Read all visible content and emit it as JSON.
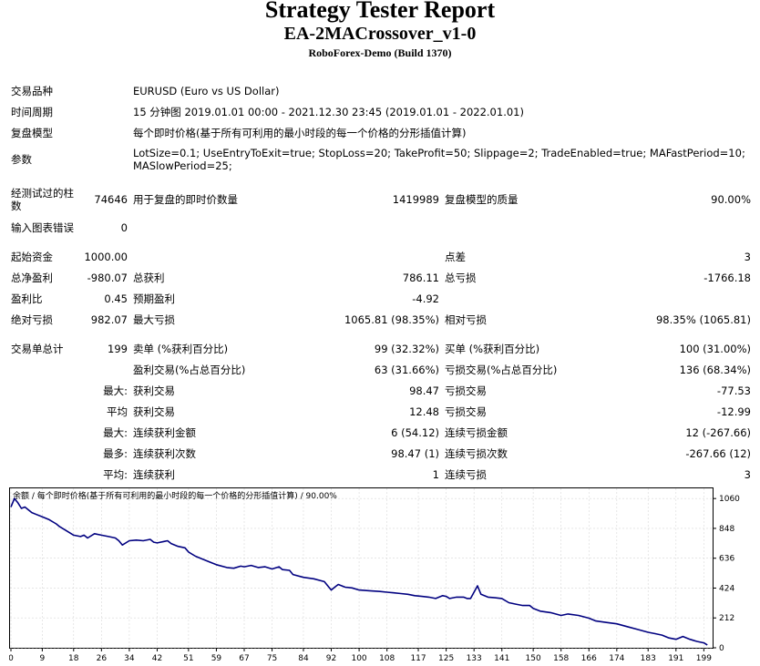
{
  "header": {
    "title": "Strategy Tester Report",
    "ea_name": "EA-2MACrossover_v1-0",
    "server": "RoboForex-Demo (Build 1370)"
  },
  "settings": {
    "symbol_label": "交易品种",
    "symbol_value": "EURUSD (Euro vs US Dollar)",
    "period_label": "时间周期",
    "period_value": "15 分钟图 2019.01.01 00:00 - 2021.12.30 23:45 (2019.01.01 - 2022.01.01)",
    "model_label": "复盘模型",
    "model_value": "每个即时价格(基于所有可利用的最小时段的每一个价格的分形插值计算)",
    "params_label": "参数",
    "params_line1": "LotSize=0.1; UseEntryToExit=true; StopLoss=20; TakeProfit=50; Slippage=2; TradeEnabled=true; MAFastPeriod=10;",
    "params_line2": "MASlowPeriod=25;"
  },
  "test": {
    "bars_label_1": "经测试过的柱",
    "bars_label_2": "数",
    "bars_value": "74646",
    "ticks_label": "用于复盘的即时价数量",
    "ticks_value": "1419989",
    "quality_label": "复盘模型的质量",
    "quality_value": "90.00%",
    "errors_label": "输入图表错误",
    "errors_value": "0"
  },
  "results": {
    "deposit_label": "起始资金",
    "deposit_value": "1000.00",
    "spread_label": "点差",
    "spread_value": "3",
    "net_profit_label": "总净盈利",
    "net_profit_value": "-980.07",
    "gross_profit_label": "总获利",
    "gross_profit_value": "786.11",
    "gross_loss_label": "总亏损",
    "gross_loss_value": "-1766.18",
    "profit_factor_label": "盈利比",
    "profit_factor_value": "0.45",
    "expected_payoff_label": "预期盈利",
    "expected_payoff_value": "-4.92",
    "abs_dd_label": "绝对亏损",
    "abs_dd_value": "982.07",
    "max_dd_label": "最大亏损",
    "max_dd_value": "1065.81 (98.35%)",
    "rel_dd_label": "相对亏损",
    "rel_dd_value": "98.35% (1065.81)"
  },
  "trades": {
    "total_label": "交易单总计",
    "total_value": "199",
    "short_label": "卖单 (%获利百分比)",
    "short_value": "99 (32.32%)",
    "long_label": "买单 (%获利百分比)",
    "long_value": "100 (31.00%)",
    "profit_trades_label": "盈利交易(%占总百分比)",
    "profit_trades_value": "63 (31.66%)",
    "loss_trades_label": "亏损交易(%占总百分比)",
    "loss_trades_value": "136 (68.34%)",
    "largest_prefix": "最大:",
    "largest_profit_label": "获利交易",
    "largest_profit_value": "98.47",
    "largest_loss_label": "亏损交易",
    "largest_loss_value": "-77.53",
    "average_prefix": "平均",
    "average_profit_label": "获利交易",
    "average_profit_value": "12.48",
    "average_loss_label": "亏损交易",
    "average_loss_value": "-12.99",
    "max_prefix": "最大:",
    "max_cons_wins_label": "连续获利金额",
    "max_cons_wins_value": "6 (54.12)",
    "max_cons_losses_label": "连续亏损金额",
    "max_cons_losses_value": "12 (-267.66)",
    "maximal_prefix": "最多:",
    "maximal_cons_profit_label": "连续获利次数",
    "maximal_cons_profit_value": "98.47 (1)",
    "maximal_cons_loss_label": "连续亏损次数",
    "maximal_cons_loss_value": "-267.66 (12)",
    "avg_prefix": "平均:",
    "avg_cons_wins_label": "连续获利",
    "avg_cons_wins_value": "1",
    "avg_cons_losses_label": "连续亏损",
    "avg_cons_losses_value": "3"
  },
  "chart_data": {
    "type": "line",
    "title": "余额 / 每个即时价格(基于所有可利用的最小时段的每一个价格的分形插值计算) / 90.00%",
    "x_ticks": [
      0,
      9,
      18,
      26,
      34,
      42,
      51,
      59,
      67,
      75,
      84,
      92,
      100,
      108,
      117,
      125,
      133,
      141,
      150,
      158,
      166,
      174,
      183,
      191,
      199
    ],
    "y_ticks": [
      0,
      212,
      424,
      636,
      848,
      1060
    ],
    "xlim": [
      0,
      201
    ],
    "ylim": [
      0,
      1100
    ],
    "line_color": "#000080",
    "grid": true,
    "series": [
      {
        "x": [
          0,
          1,
          2,
          3,
          4,
          6,
          7,
          9,
          11,
          13,
          14,
          16,
          18,
          20,
          21,
          22,
          24,
          26,
          28,
          30,
          31,
          32,
          34,
          36,
          38,
          40,
          41,
          42,
          44,
          45,
          46,
          48,
          50,
          51,
          53,
          55,
          57,
          59,
          62,
          64,
          66,
          67,
          69,
          71,
          73,
          75,
          77,
          78,
          80,
          81,
          84,
          87,
          90,
          92,
          93,
          94,
          96,
          98,
          100,
          103,
          106,
          108,
          110,
          112,
          114,
          116,
          118,
          120,
          122,
          124,
          125,
          126,
          128,
          130,
          131,
          132,
          134,
          135,
          137,
          139,
          141,
          143,
          145,
          147,
          149,
          150,
          152,
          155,
          158,
          160,
          163,
          166,
          168,
          171,
          174,
          177,
          180,
          183,
          185,
          187,
          189,
          191,
          193,
          195,
          197,
          199,
          200
        ],
        "values": [
          1000,
          1060,
          1030,
          990,
          1000,
          960,
          950,
          930,
          910,
          880,
          860,
          830,
          800,
          790,
          800,
          780,
          810,
          800,
          790,
          780,
          760,
          730,
          760,
          765,
          760,
          770,
          750,
          745,
          755,
          760,
          740,
          720,
          710,
          680,
          650,
          630,
          610,
          590,
          570,
          565,
          580,
          575,
          585,
          570,
          575,
          560,
          575,
          555,
          550,
          520,
          500,
          490,
          470,
          410,
          430,
          450,
          430,
          425,
          410,
          405,
          400,
          395,
          390,
          385,
          380,
          370,
          365,
          360,
          350,
          370,
          365,
          350,
          360,
          360,
          350,
          350,
          440,
          380,
          360,
          355,
          350,
          320,
          310,
          300,
          300,
          280,
          260,
          250,
          230,
          240,
          230,
          210,
          190,
          180,
          170,
          150,
          130,
          110,
          100,
          90,
          70,
          60,
          80,
          60,
          45,
          35,
          20
        ]
      }
    ]
  }
}
